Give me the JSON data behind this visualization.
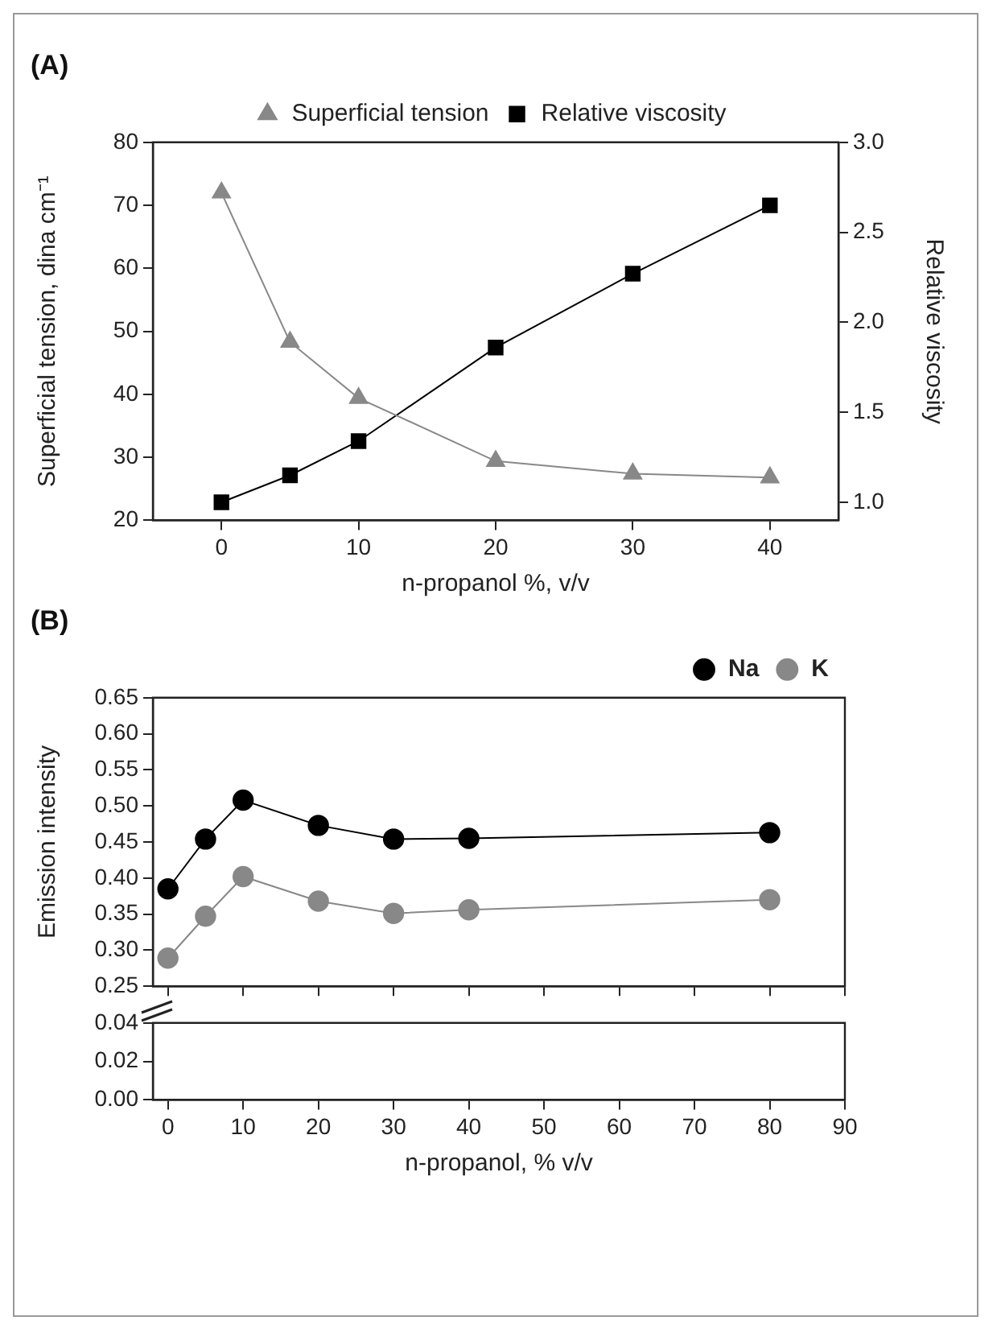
{
  "chart_data": [
    {
      "type": "line",
      "title": "(A)",
      "x": [
        0,
        5,
        10,
        20,
        30,
        40
      ],
      "xlim": [
        -5,
        45
      ],
      "xticks": [
        0,
        10,
        20,
        30,
        40
      ],
      "xlabel": "n-propanol %, v/v",
      "ylabel": "Superficial tension, dina cm⁻¹",
      "y2label": "Relative viscosity",
      "ylim": [
        20,
        80
      ],
      "yticks": [
        20,
        30,
        40,
        50,
        60,
        70,
        80
      ],
      "y2lim": [
        0.9,
        3.0
      ],
      "y2ticks": [
        {
          "value": 1.0,
          "label": "1.0"
        },
        {
          "value": 1.5,
          "label": "1.5"
        },
        {
          "value": 2.0,
          "label": "2.0"
        },
        {
          "value": 2.5,
          "label": "2.5"
        },
        {
          "value": 3.0,
          "label": "3.0"
        }
      ],
      "legend": "top",
      "grid": false,
      "series": [
        {
          "name": "Superficial tension",
          "color": "#888888",
          "marker": "triangle",
          "values": [
            72,
            48.3,
            39.4,
            29.4,
            27.4,
            26.8
          ]
        },
        {
          "name": "Relative viscosity",
          "color": "#000000",
          "marker": "square",
          "axis": "y2",
          "values": [
            1.0,
            1.15,
            1.34,
            1.86,
            2.27,
            2.65
          ]
        }
      ]
    },
    {
      "type": "line",
      "title": "(B)",
      "x": [
        0,
        5,
        10,
        20,
        30,
        40,
        80
      ],
      "xlim": [
        -2,
        90
      ],
      "xticks": [
        0,
        10,
        20,
        30,
        40,
        50,
        60,
        70,
        80,
        90
      ],
      "ylabel": "Emission intensity",
      "ylim": [
        0.25,
        0.65
      ],
      "yticks": [
        {
          "value": 0.25,
          "label": "0.25"
        },
        {
          "value": 0.3,
          "label": "0.30"
        },
        {
          "value": 0.35,
          "label": "0.35"
        },
        {
          "value": 0.4,
          "label": "0.40"
        },
        {
          "value": 0.45,
          "label": "0.45"
        },
        {
          "value": 0.5,
          "label": "0.50"
        },
        {
          "value": 0.55,
          "label": "0.55"
        },
        {
          "value": 0.6,
          "label": "0.60"
        },
        {
          "value": 0.65,
          "label": "0.65"
        }
      ],
      "tick_labels": "y",
      "legend": "top right",
      "grid": false,
      "series": [
        {
          "name": "Na",
          "color": "#000000",
          "marker": "circle",
          "values": [
            0.385,
            0.454,
            0.508,
            0.473,
            0.454,
            0.455,
            0.463
          ]
        },
        {
          "name": "K",
          "color": "#888888",
          "marker": "circle",
          "values": [
            0.289,
            0.347,
            0.402,
            0.368,
            0.351,
            0.356,
            0.37
          ]
        }
      ]
    },
    {
      "type": "line",
      "xlim": [
        -2,
        90
      ],
      "xticks": [
        0,
        10,
        20,
        30,
        40,
        50,
        60,
        70,
        80,
        90
      ],
      "xlabel": "n-propanol, % v/v",
      "ylim": [
        0,
        0.04
      ],
      "yticks": [
        {
          "value": 0,
          "label": "0.00"
        },
        {
          "value": 0.02,
          "label": "0.02"
        },
        {
          "value": 0.04,
          "label": "0.04"
        }
      ],
      "grid": false
    }
  ]
}
